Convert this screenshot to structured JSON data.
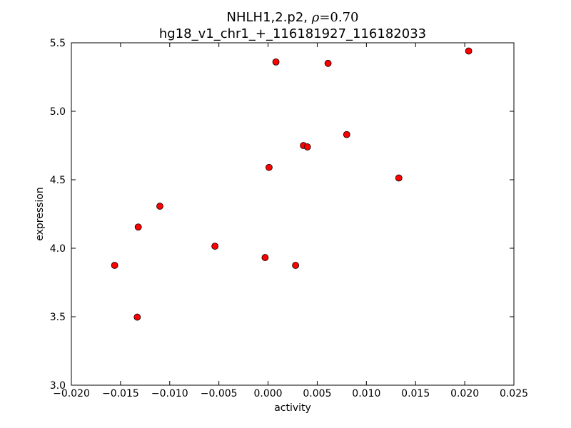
{
  "chart_data": {
    "type": "scatter",
    "title_prefix": "NHLH1,2.p2, ",
    "title_rho_symbol": "ρ",
    "title_rho_value": "=0.70",
    "subtitle": "hg18_v1_chr1_+_116181927_116182033",
    "xlabel": "activity",
    "ylabel": "expression",
    "xlim": [
      -0.02,
      0.025
    ],
    "ylim": [
      3.0,
      5.5
    ],
    "xticks": [
      -0.02,
      -0.015,
      -0.01,
      -0.005,
      0.0,
      0.005,
      0.01,
      0.015,
      0.02,
      0.025
    ],
    "xtick_labels": [
      "−0.020",
      "−0.015",
      "−0.010",
      "−0.005",
      "0.000",
      "0.005",
      "0.010",
      "0.015",
      "0.020",
      "0.025"
    ],
    "yticks": [
      3.0,
      3.5,
      4.0,
      4.5,
      5.0,
      5.5
    ],
    "ytick_labels": [
      "3.0",
      "3.5",
      "4.0",
      "4.5",
      "5.0",
      "5.5"
    ],
    "grid": false,
    "marker_color": "#ff0000",
    "marker_edge": "#000000",
    "points": [
      {
        "x": -0.0156,
        "y": 3.875
      },
      {
        "x": -0.0133,
        "y": 3.497
      },
      {
        "x": -0.0132,
        "y": 4.155
      },
      {
        "x": -0.011,
        "y": 4.307
      },
      {
        "x": -0.0054,
        "y": 4.015
      },
      {
        "x": -0.0003,
        "y": 3.932
      },
      {
        "x": 0.0001,
        "y": 4.59
      },
      {
        "x": 0.0008,
        "y": 5.36
      },
      {
        "x": 0.0028,
        "y": 3.875
      },
      {
        "x": 0.0036,
        "y": 4.75
      },
      {
        "x": 0.004,
        "y": 4.74
      },
      {
        "x": 0.0061,
        "y": 5.35
      },
      {
        "x": 0.008,
        "y": 4.83
      },
      {
        "x": 0.0133,
        "y": 4.513
      },
      {
        "x": 0.0204,
        "y": 5.44
      }
    ]
  }
}
